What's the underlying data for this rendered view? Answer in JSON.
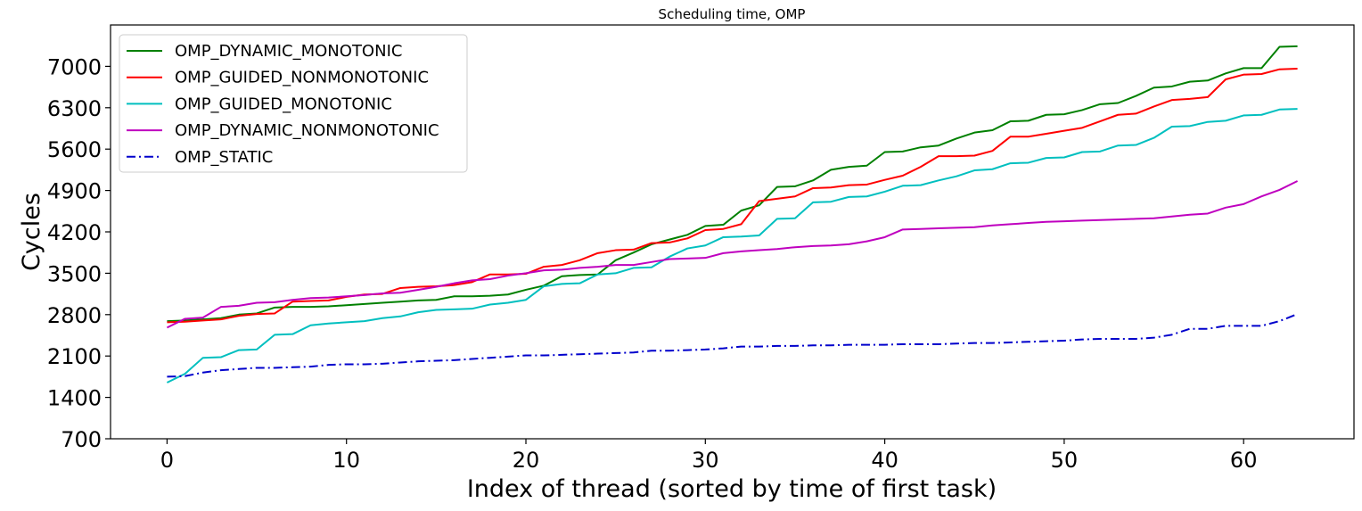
{
  "chart_data": {
    "type": "line",
    "title": "Scheduling time, OMP",
    "xlabel": "Index of thread (sorted by time of first task)",
    "ylabel": "Cycles",
    "xlim": [
      -3.15,
      66.15
    ],
    "ylim": [
      700,
      7700
    ],
    "xticks": [
      0,
      10,
      20,
      30,
      40,
      50,
      60
    ],
    "yticks": [
      700,
      1400,
      2100,
      2800,
      3500,
      4200,
      4900,
      5600,
      6300,
      7000
    ],
    "grid": false,
    "legend_position": "top-left",
    "series": [
      {
        "name": "OMP_DYNAMIC_MONOTONIC",
        "color": "#008000",
        "style": "solid",
        "x": [
          0,
          1,
          2,
          3,
          4,
          5,
          6,
          7,
          8,
          9,
          10,
          11,
          12,
          13,
          14,
          15,
          16,
          17,
          18,
          19,
          20,
          21,
          22,
          23,
          24,
          25,
          26,
          27,
          28,
          29,
          30,
          31,
          32,
          33,
          34,
          35,
          36,
          37,
          38,
          39,
          40,
          41,
          42,
          43,
          44,
          45,
          46,
          47,
          48,
          49,
          50,
          51,
          52,
          53,
          54,
          55,
          56,
          57,
          58,
          59,
          60,
          61,
          62,
          63
        ],
        "values": [
          2690,
          2700,
          2720,
          2740,
          2800,
          2820,
          2920,
          2930,
          2930,
          2940,
          2960,
          2980,
          3000,
          3020,
          3040,
          3050,
          3110,
          3110,
          3120,
          3140,
          3220,
          3290,
          3450,
          3470,
          3480,
          3720,
          3850,
          3990,
          4070,
          4150,
          4300,
          4320,
          4560,
          4650,
          4960,
          4970,
          5070,
          5250,
          5300,
          5320,
          5550,
          5560,
          5630,
          5660,
          5780,
          5880,
          5920,
          6070,
          6080,
          6180,
          6190,
          6260,
          6360,
          6380,
          6500,
          6640,
          6660,
          6740,
          6760,
          6880,
          6970,
          6970,
          7330,
          7340
        ]
      },
      {
        "name": "OMP_GUIDED_NONMONOTONIC",
        "color": "#ff0000",
        "style": "solid",
        "x": [
          0,
          1,
          2,
          3,
          4,
          5,
          6,
          7,
          8,
          9,
          10,
          11,
          12,
          13,
          14,
          15,
          16,
          17,
          18,
          19,
          20,
          21,
          22,
          23,
          24,
          25,
          26,
          27,
          28,
          29,
          30,
          31,
          32,
          33,
          34,
          35,
          36,
          37,
          38,
          39,
          40,
          41,
          42,
          43,
          44,
          45,
          46,
          47,
          48,
          49,
          50,
          51,
          52,
          53,
          54,
          55,
          56,
          57,
          58,
          59,
          60,
          61,
          62,
          63
        ],
        "values": [
          2670,
          2680,
          2700,
          2720,
          2780,
          2810,
          2820,
          3020,
          3030,
          3040,
          3100,
          3140,
          3150,
          3250,
          3270,
          3280,
          3300,
          3350,
          3480,
          3480,
          3490,
          3610,
          3640,
          3720,
          3840,
          3890,
          3900,
          4010,
          4020,
          4090,
          4230,
          4250,
          4330,
          4720,
          4760,
          4800,
          4940,
          4950,
          4990,
          5000,
          5080,
          5150,
          5300,
          5480,
          5480,
          5490,
          5570,
          5810,
          5810,
          5860,
          5910,
          5960,
          6070,
          6180,
          6200,
          6320,
          6430,
          6450,
          6480,
          6780,
          6860,
          6870,
          6950,
          6960
        ]
      },
      {
        "name": "OMP_GUIDED_MONOTONIC",
        "color": "#00bfbf",
        "style": "solid",
        "x": [
          0,
          1,
          2,
          3,
          4,
          5,
          6,
          7,
          8,
          9,
          10,
          11,
          12,
          13,
          14,
          15,
          16,
          17,
          18,
          19,
          20,
          21,
          22,
          23,
          24,
          25,
          26,
          27,
          28,
          29,
          30,
          31,
          32,
          33,
          34,
          35,
          36,
          37,
          38,
          39,
          40,
          41,
          42,
          43,
          44,
          45,
          46,
          47,
          48,
          49,
          50,
          51,
          52,
          53,
          54,
          55,
          56,
          57,
          58,
          59,
          60,
          61,
          62,
          63
        ],
        "values": [
          1650,
          1800,
          2070,
          2080,
          2200,
          2210,
          2460,
          2470,
          2620,
          2650,
          2670,
          2690,
          2740,
          2770,
          2840,
          2880,
          2890,
          2900,
          2970,
          3000,
          3050,
          3280,
          3320,
          3330,
          3480,
          3500,
          3590,
          3600,
          3780,
          3920,
          3970,
          4110,
          4120,
          4140,
          4420,
          4430,
          4700,
          4710,
          4790,
          4800,
          4880,
          4980,
          4990,
          5070,
          5140,
          5240,
          5260,
          5360,
          5370,
          5450,
          5460,
          5550,
          5560,
          5660,
          5670,
          5790,
          5980,
          5990,
          6060,
          6080,
          6170,
          6180,
          6270,
          6280
        ]
      },
      {
        "name": "OMP_DYNAMIC_NONMONOTONIC",
        "color": "#bf00bf",
        "style": "solid",
        "x": [
          0,
          1,
          2,
          3,
          4,
          5,
          6,
          7,
          8,
          9,
          10,
          11,
          12,
          13,
          14,
          15,
          16,
          17,
          18,
          19,
          20,
          21,
          22,
          23,
          24,
          25,
          26,
          27,
          28,
          29,
          30,
          31,
          32,
          33,
          34,
          35,
          36,
          37,
          38,
          39,
          40,
          41,
          42,
          43,
          44,
          45,
          46,
          47,
          48,
          49,
          50,
          51,
          52,
          53,
          54,
          55,
          56,
          57,
          58,
          59,
          60,
          61,
          62,
          63
        ],
        "values": [
          2580,
          2730,
          2750,
          2930,
          2950,
          3000,
          3010,
          3050,
          3080,
          3090,
          3110,
          3130,
          3160,
          3170,
          3220,
          3270,
          3330,
          3380,
          3400,
          3460,
          3500,
          3550,
          3560,
          3590,
          3610,
          3640,
          3640,
          3690,
          3740,
          3750,
          3760,
          3840,
          3870,
          3890,
          3910,
          3940,
          3960,
          3970,
          3990,
          4040,
          4110,
          4240,
          4250,
          4260,
          4270,
          4280,
          4310,
          4330,
          4350,
          4370,
          4380,
          4390,
          4400,
          4410,
          4420,
          4430,
          4460,
          4490,
          4510,
          4610,
          4670,
          4800,
          4910,
          5060
        ]
      },
      {
        "name": "OMP_STATIC",
        "color": "#0000cc",
        "style": "dashdot",
        "x": [
          0,
          1,
          2,
          3,
          4,
          5,
          6,
          7,
          8,
          9,
          10,
          11,
          12,
          13,
          14,
          15,
          16,
          17,
          18,
          19,
          20,
          21,
          22,
          23,
          24,
          25,
          26,
          27,
          28,
          29,
          30,
          31,
          32,
          33,
          34,
          35,
          36,
          37,
          38,
          39,
          40,
          41,
          42,
          43,
          44,
          45,
          46,
          47,
          48,
          49,
          50,
          51,
          52,
          53,
          54,
          55,
          56,
          57,
          58,
          59,
          60,
          61,
          62,
          63
        ],
        "values": [
          1750,
          1760,
          1820,
          1860,
          1880,
          1900,
          1900,
          1910,
          1920,
          1950,
          1960,
          1960,
          1970,
          1990,
          2010,
          2020,
          2030,
          2050,
          2070,
          2090,
          2110,
          2110,
          2120,
          2130,
          2140,
          2150,
          2160,
          2190,
          2190,
          2200,
          2210,
          2230,
          2260,
          2260,
          2270,
          2270,
          2280,
          2280,
          2290,
          2290,
          2290,
          2300,
          2300,
          2300,
          2310,
          2320,
          2320,
          2330,
          2340,
          2350,
          2360,
          2380,
          2390,
          2390,
          2390,
          2410,
          2460,
          2560,
          2560,
          2610,
          2610,
          2610,
          2690,
          2810
        ]
      }
    ]
  }
}
